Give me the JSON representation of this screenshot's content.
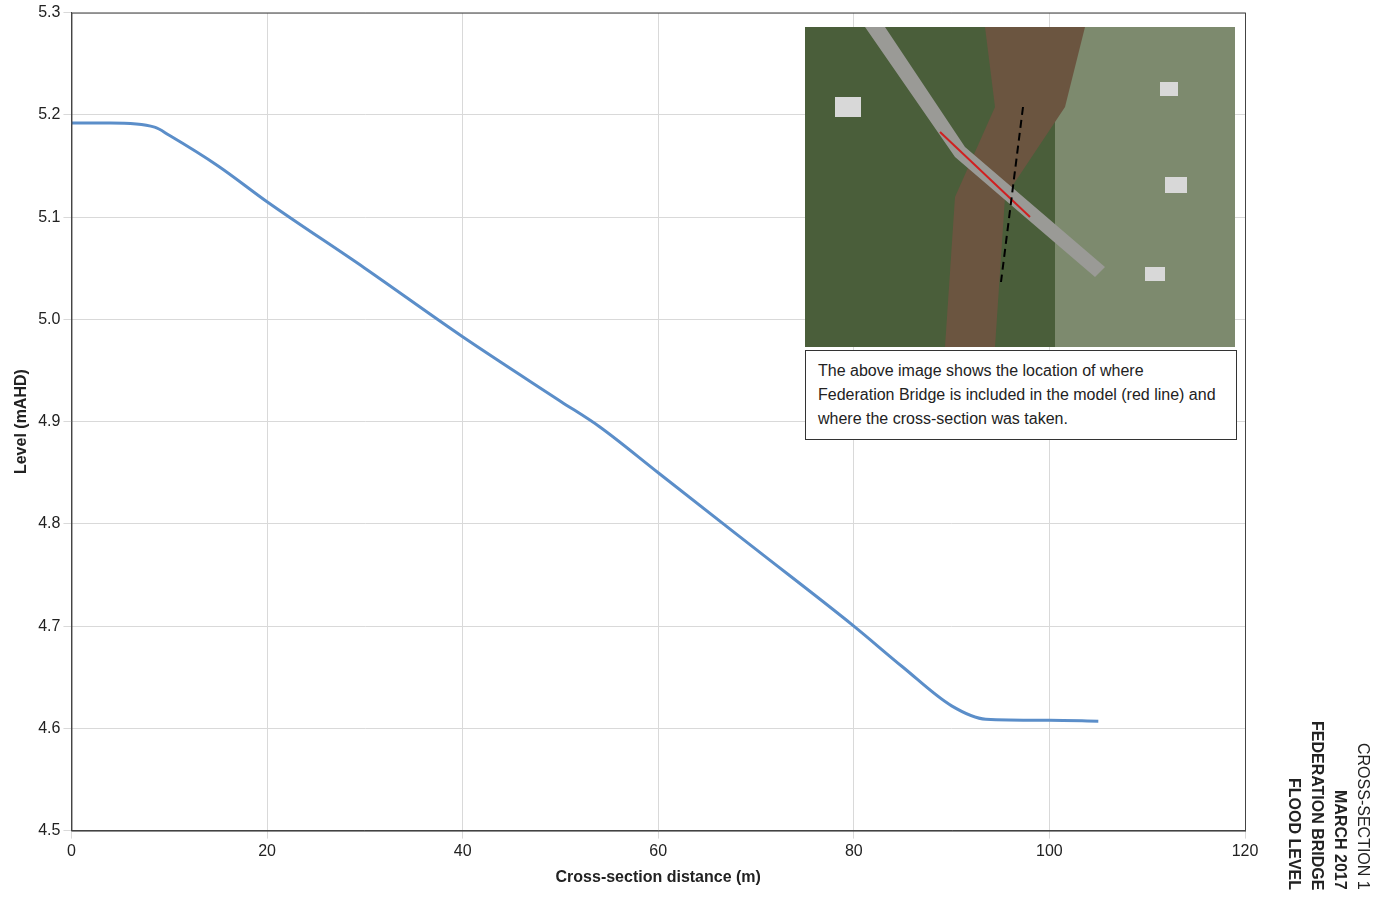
{
  "chart_data": {
    "type": "line",
    "x_label": "Cross-section distance (m)",
    "y_label": "Level (mAHD)",
    "side_title": [
      "CROSS-SECTION 1",
      "MARCH 2017",
      "FEDERATION BRIDGE",
      "FLOOD LEVEL"
    ],
    "annotation": "The above image shows the location of where Federation Bridge is included in the model (red line) and where the cross-section was taken.",
    "x": [
      0,
      4,
      8.5,
      10,
      15,
      20,
      30,
      40,
      50,
      54,
      60,
      70,
      80,
      85,
      90,
      93.5,
      100,
      105
    ],
    "values": [
      5.192,
      5.192,
      5.188,
      5.18,
      5.15,
      5.115,
      5.05,
      4.983,
      4.92,
      4.895,
      4.85,
      4.775,
      4.7,
      4.66,
      4.622,
      4.609,
      4.608,
      4.607
    ],
    "color": "#5b8ec9",
    "marker": "none",
    "xlim": [
      0,
      120
    ],
    "xticks": [
      0,
      20,
      40,
      60,
      80,
      100,
      120
    ],
    "ylim": [
      4.5,
      5.3
    ],
    "yticks": [
      4.5,
      4.6,
      4.7,
      4.8,
      4.9,
      {
        "value": 5.0,
        "label": "5.0"
      },
      5.1,
      5.2,
      5.3
    ],
    "grid": true
  }
}
